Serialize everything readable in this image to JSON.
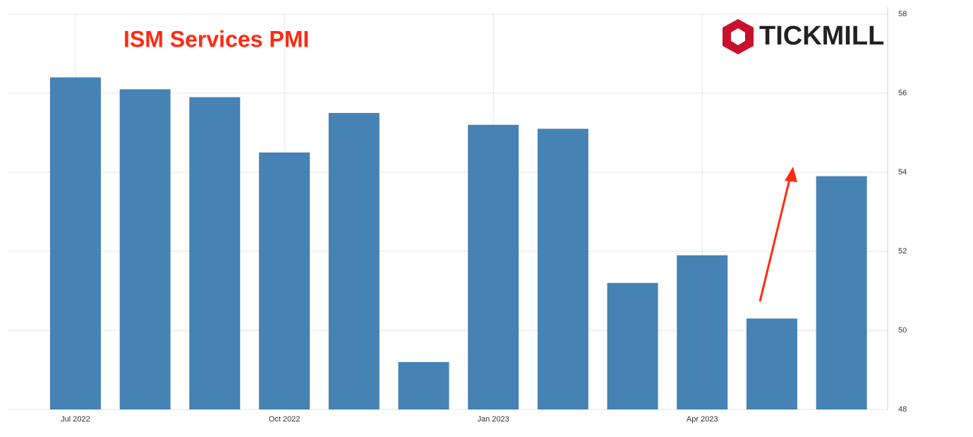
{
  "chart_data": {
    "type": "bar",
    "title": "ISM Services PMI",
    "logo": "TICKMILL",
    "categories": [
      "Jul 2022",
      null,
      null,
      "Oct 2022",
      null,
      null,
      "Jan 2023",
      null,
      null,
      "Apr 2023",
      null,
      null
    ],
    "values": [
      56.4,
      56.1,
      55.9,
      54.5,
      55.5,
      49.2,
      55.2,
      55.1,
      51.2,
      51.9,
      50.3,
      53.9
    ],
    "color": "#4682b4",
    "title_color": "#ff2a12",
    "ylim": [
      48,
      58
    ],
    "yticks": [
      48,
      50,
      52,
      54,
      56,
      58
    ],
    "grid": true
  }
}
